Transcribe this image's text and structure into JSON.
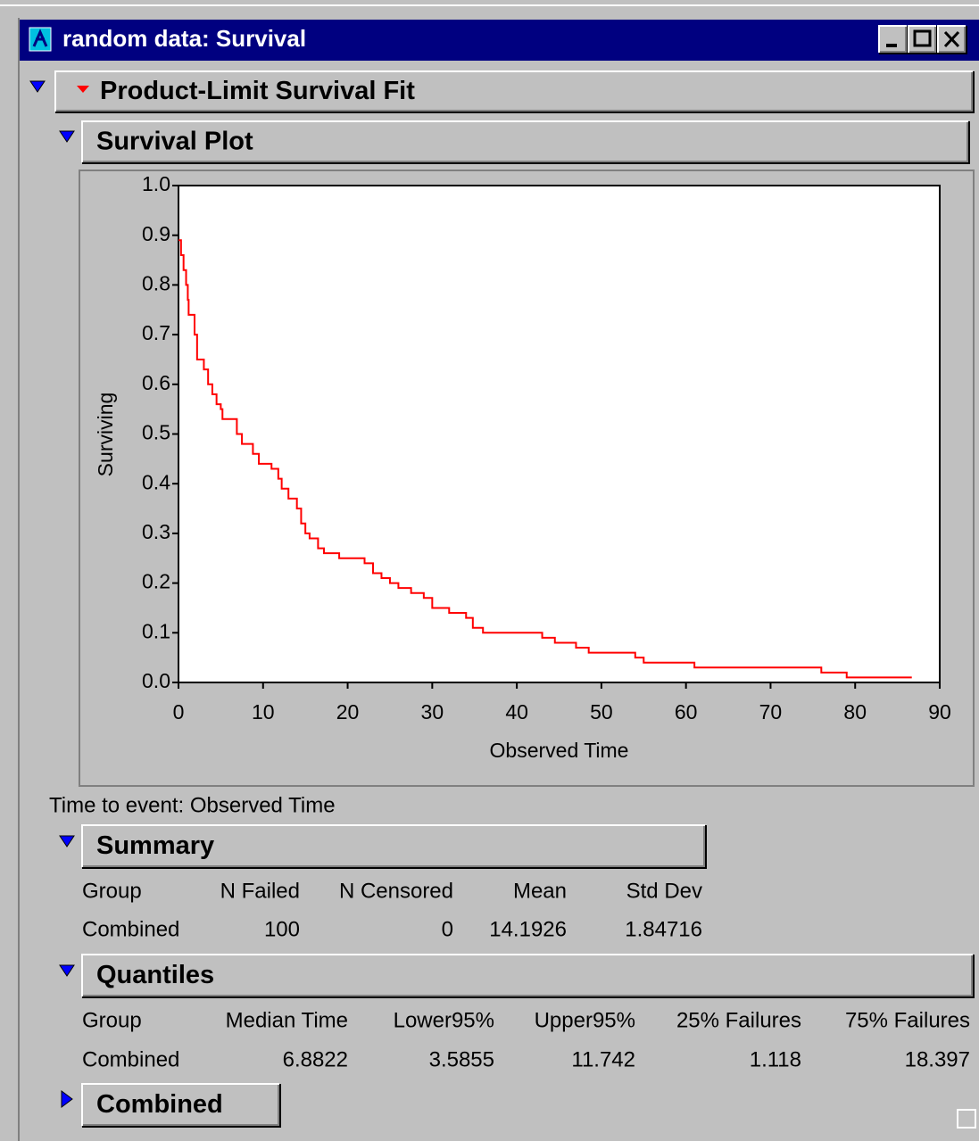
{
  "window": {
    "title": "random data: Survival"
  },
  "report": {
    "title": "Product-Limit Survival Fit"
  },
  "plot_section": {
    "title": "Survival Plot"
  },
  "chart_data": {
    "type": "line",
    "step": "post",
    "color": "#ff0000",
    "xlabel": "Observed Time",
    "ylabel": "Surviving",
    "xlim": [
      0,
      90
    ],
    "ylim": [
      0,
      1
    ],
    "xticks": [
      0,
      10,
      20,
      30,
      40,
      50,
      60,
      70,
      80,
      90
    ],
    "yticks": [
      {
        "value": 0,
        "label": "0.0"
      },
      0.1,
      0.2,
      0.3,
      0.4,
      0.5,
      0.6,
      0.7,
      0.8,
      0.9,
      {
        "value": 1,
        "label": "1.0"
      }
    ],
    "x": [
      0,
      0.3,
      0.6,
      0.9,
      1.1,
      1.2,
      1.9,
      2.2,
      3.0,
      3.5,
      4.0,
      4.5,
      5.0,
      5.2,
      6.9,
      7.5,
      8.8,
      9.5,
      11,
      11.8,
      12.2,
      13,
      14,
      14.5,
      15,
      15.5,
      16.5,
      17.2,
      19,
      22,
      23,
      24,
      25,
      26,
      27.5,
      29,
      30,
      32,
      34,
      34.8,
      36,
      43,
      44.5,
      47,
      48.5,
      54,
      55,
      61,
      76,
      79,
      86.7
    ],
    "values": [
      0.89,
      0.86,
      0.83,
      0.8,
      0.77,
      0.74,
      0.7,
      0.65,
      0.63,
      0.6,
      0.58,
      0.56,
      0.55,
      0.53,
      0.5,
      0.48,
      0.46,
      0.44,
      0.43,
      0.41,
      0.39,
      0.37,
      0.35,
      0.32,
      0.3,
      0.29,
      0.27,
      0.26,
      0.25,
      0.24,
      0.22,
      0.21,
      0.2,
      0.19,
      0.18,
      0.17,
      0.15,
      0.14,
      0.13,
      0.11,
      0.1,
      0.09,
      0.08,
      0.07,
      0.06,
      0.05,
      0.04,
      0.03,
      0.02,
      0.01,
      0.01
    ]
  },
  "note": "Time to event: Observed Time",
  "summary": {
    "title": "Summary",
    "columns": [
      "Group",
      "N Failed",
      "N Censored",
      "Mean",
      "Std Dev"
    ],
    "rows": [
      [
        "Combined",
        100,
        0,
        14.1926,
        1.84716
      ]
    ]
  },
  "quantiles": {
    "title": "Quantiles",
    "columns": [
      "Group",
      "Median Time",
      "Lower95%",
      "Upper95%",
      "25% Failures",
      "75% Failures"
    ],
    "rows": [
      [
        "Combined",
        6.8822,
        3.5855,
        11.742,
        1.118,
        18.397
      ]
    ]
  },
  "combined": {
    "title": "Combined"
  }
}
